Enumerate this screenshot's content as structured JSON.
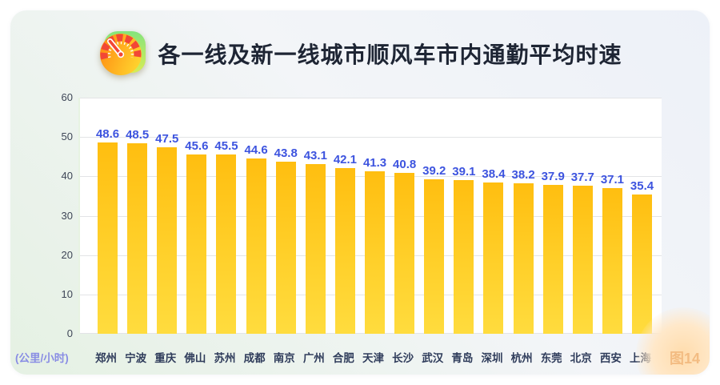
{
  "header": {
    "title": "各一线及新一线城市顺风车市内通勤平均时速",
    "icon": "speedometer-icon"
  },
  "chart_data": {
    "type": "bar",
    "title": "各一线及新一线城市顺风车市内通勤平均时速",
    "categories": [
      "郑州",
      "宁波",
      "重庆",
      "佛山",
      "苏州",
      "成都",
      "南京",
      "广州",
      "合肥",
      "天津",
      "长沙",
      "武汉",
      "青岛",
      "深圳",
      "杭州",
      "东莞",
      "北京",
      "西安",
      "上海"
    ],
    "values": [
      48.6,
      48.5,
      47.5,
      45.6,
      45.5,
      44.6,
      43.8,
      43.1,
      42.1,
      41.3,
      40.8,
      39.2,
      39.1,
      38.4,
      38.2,
      37.9,
      37.7,
      37.1,
      35.4
    ],
    "xlabel": "",
    "ylabel": "(公里/小时)",
    "yticks": [
      0,
      10,
      20,
      30,
      40,
      50,
      60
    ],
    "ylim": [
      0,
      60
    ],
    "grid": true,
    "legend": "none",
    "bar_color_top": "#FFBE10",
    "bar_color_bottom": "#FFDC3E",
    "value_label_color": "#3D54DF"
  },
  "footer": {
    "figure_label": "图14"
  },
  "colors": {
    "bar_yellow": "#FFC415",
    "value_blue": "#3D54DF",
    "city_navy": "#2F3C5B",
    "unit_periwinkle": "#898DE4",
    "figure_peach": "#F3BC82",
    "card_green_tint": "#E5F1E3",
    "card_blue_tint": "#EDF1F8"
  }
}
